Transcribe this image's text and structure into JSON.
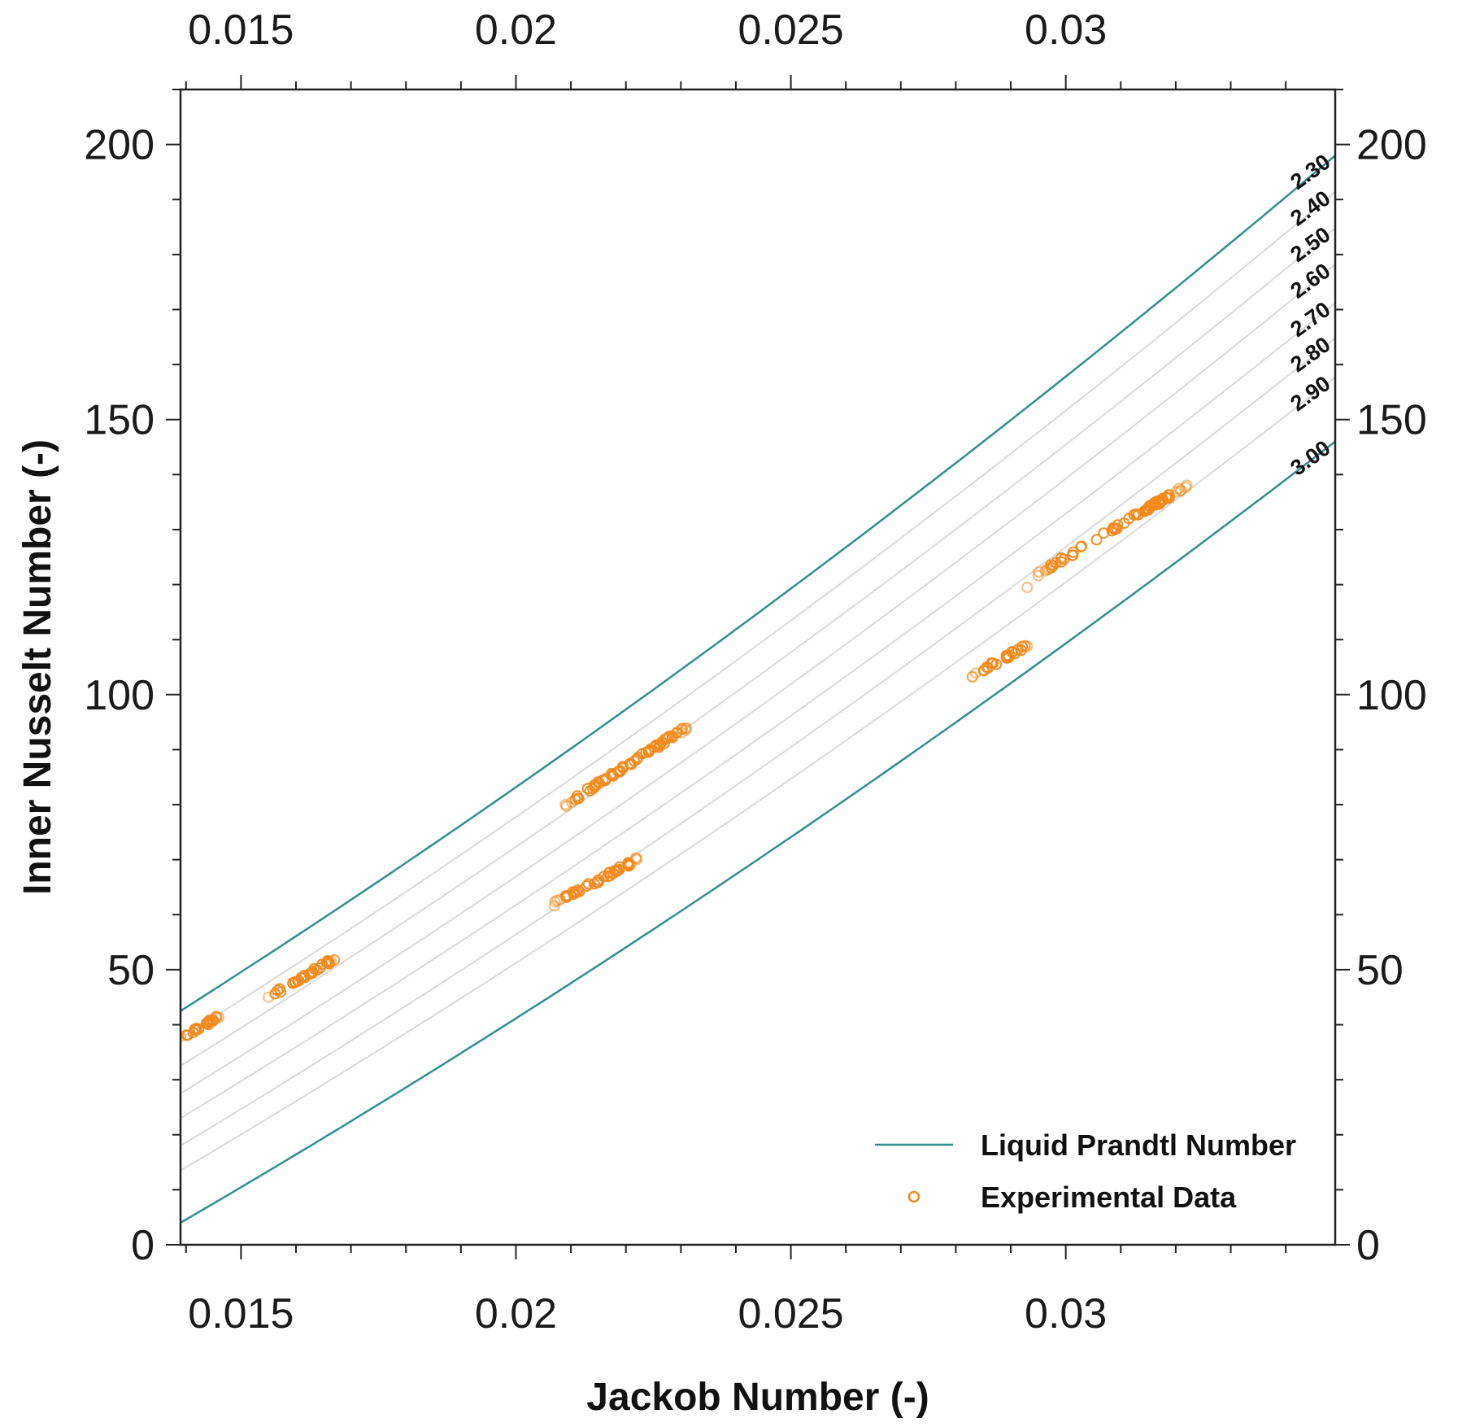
{
  "chart_data": {
    "type": "scatter",
    "xlabel": "Jackob Number (-)",
    "ylabel": "Inner Nusselt Number (-)",
    "xlim": [
      0.0139,
      0.0349
    ],
    "ylim": [
      0,
      210
    ],
    "x_ticks": [
      0.015,
      0.02,
      0.025,
      0.03
    ],
    "x_tick_labels": [
      "0.015",
      "0.02",
      "0.025",
      "0.03"
    ],
    "y_ticks": [
      0,
      50,
      100,
      150,
      200
    ],
    "y_tick_labels": [
      "0",
      "50",
      "100",
      "150",
      "200"
    ],
    "x_minor_step": 0.001,
    "y_minor_step": 10,
    "grid": false,
    "legend_position": "bottom-right",
    "colors": {
      "boundary": "#2f8f8f",
      "contour": "#d9d9d9",
      "data": "#f28a1c"
    },
    "series": [
      {
        "name": "Liquid Prandtl Number",
        "kind": "line",
        "contours": [
          {
            "label": "2.30",
            "nu_start": 42.5,
            "nu_end": 198.0
          },
          {
            "label": "2.40",
            "nu_start": 37.5,
            "nu_end": 191.4
          },
          {
            "label": "2.50",
            "nu_start": 32.5,
            "nu_end": 184.8
          },
          {
            "label": "2.60",
            "nu_start": 27.5,
            "nu_end": 178.2
          },
          {
            "label": "2.70",
            "nu_start": 23.0,
            "nu_end": 171.2
          },
          {
            "label": "2.80",
            "nu_start": 18.0,
            "nu_end": 164.8
          },
          {
            "label": "2.90",
            "nu_start": 13.5,
            "nu_end": 157.7
          },
          {
            "label": "3.00",
            "nu_start": 4.0,
            "nu_end": 146.0
          }
        ]
      },
      {
        "name": "Experimental Data",
        "kind": "scatter",
        "clusters": [
          {
            "x_start": 0.0139,
            "y_start": 37.5,
            "x_end": 0.0146,
            "y_end": 41.5,
            "points": 22
          },
          {
            "x_start": 0.0155,
            "y_start": 45.0,
            "x_end": 0.0167,
            "y_end": 52.0,
            "points": 30
          },
          {
            "x_start": 0.0207,
            "y_start": 62.0,
            "x_end": 0.0222,
            "y_end": 70.0,
            "points": 40
          },
          {
            "x_start": 0.0209,
            "y_start": 80.0,
            "x_end": 0.0231,
            "y_end": 94.0,
            "points": 60
          },
          {
            "x_start": 0.0283,
            "y_start": 103.5,
            "x_end": 0.0293,
            "y_end": 109.0,
            "points": 25
          },
          {
            "x_start": 0.0293,
            "y_start": 119.5,
            "x_end": 0.0293,
            "y_end": 119.5,
            "points": 1
          },
          {
            "x_start": 0.0295,
            "y_start": 122.0,
            "x_end": 0.0322,
            "y_end": 138.0,
            "points": 65
          }
        ]
      }
    ]
  }
}
